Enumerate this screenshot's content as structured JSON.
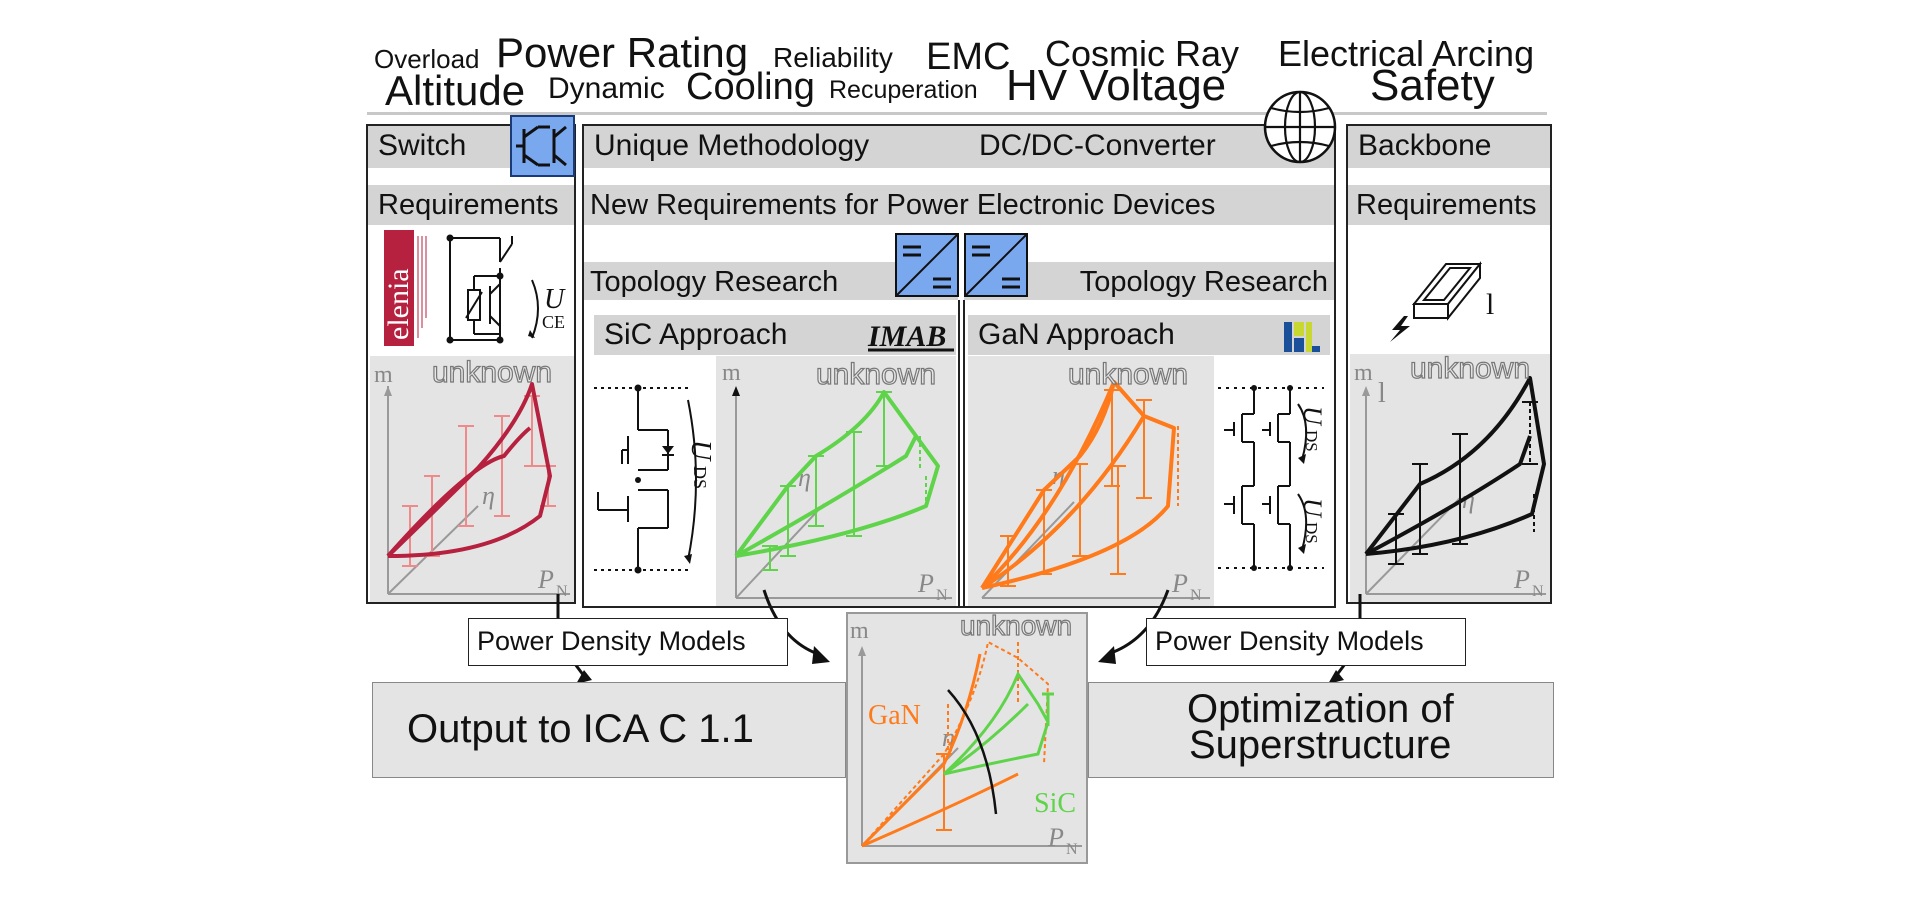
{
  "keywords": {
    "overload": "Overload",
    "power_rating": "Power Rating",
    "reliability": "Reliability",
    "emc": "EMC",
    "cosmic_ray": "Cosmic Ray",
    "electrical_arcing": "Electrical Arcing",
    "altitude": "Altitude",
    "dynamic": "Dynamic",
    "cooling": "Cooling",
    "recuperation": "Recuperation",
    "hv_voltage": "HV Voltage",
    "safety": "Safety"
  },
  "switch_panel": {
    "title": "Switch",
    "requirements": "Requirements",
    "voltage_symbol": "U",
    "voltage_sub": "CE",
    "logo_text": "elenia",
    "plot": {
      "y_label": "m",
      "x_label": "P",
      "x_sub": "N",
      "eta": "η",
      "unknown": "unknown"
    }
  },
  "center_panel": {
    "title": "Unique Methodology",
    "title_right": "DC/DC-Converter",
    "requirements": "New Requirements for Power Electronic Devices",
    "topology_left": "Topology Research",
    "topology_right": "Topology Research",
    "sic_approach": "SiC Approach",
    "gan_approach": "GaN Approach",
    "imab_logo": "IMAB",
    "sic_voltage": "U",
    "sic_voltage_sub": "DS",
    "gan_voltage": "U",
    "gan_voltage_sub": "DS",
    "sic_plot": {
      "y_label": "m",
      "x_label": "P",
      "x_sub": "N",
      "eta": "η",
      "unknown": "unknown"
    },
    "gan_plot": {
      "x_label": "P",
      "x_sub": "N",
      "eta": "η",
      "unknown": "unknown"
    }
  },
  "backbone_panel": {
    "title": "Backbone",
    "requirements": "Requirements",
    "length_symbol": "l",
    "plot": {
      "y_label": "m",
      "y_label2": "l",
      "x_label": "P",
      "x_sub": "N",
      "eta": "η",
      "unknown": "unknown"
    }
  },
  "bottom": {
    "power_density_left": "Power Density Models",
    "power_density_right": "Power Density Models",
    "output": "Output to ICA C 1.1",
    "optimization_line1": "Optimization of",
    "optimization_line2": "Superstructure",
    "combined_plot": {
      "y_label": "m",
      "x_label": "P",
      "x_sub": "N",
      "eta": "η",
      "unknown": "unknown",
      "gan": "GaN",
      "sic": "SiC"
    }
  },
  "colors": {
    "switch_curve": "#b5213f",
    "sic_curve": "#5fd44a",
    "gan_curve": "#ff7a1a",
    "backbone_curve": "#111111",
    "panel_header": "#d4d4d4",
    "plot_background": "#e4e4e4",
    "icon_blue": "#7aa8ef"
  },
  "icons": [
    "switch-icon",
    "globe-icon",
    "dcdc-converter-icon",
    "busbar-icon",
    "lightning-icon"
  ]
}
